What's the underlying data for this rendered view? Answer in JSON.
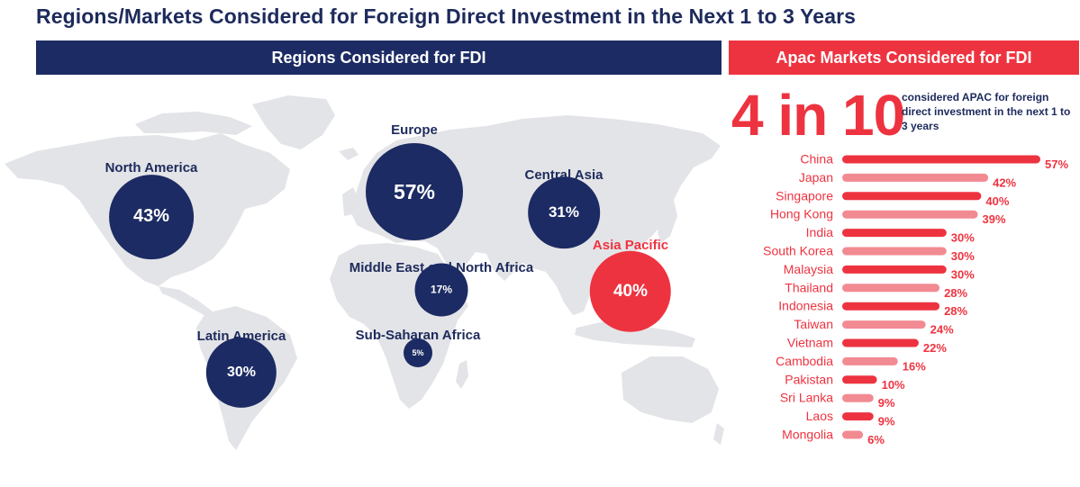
{
  "title": "Regions/Markets Considered for Foreign Direct Investment in the Next 1 to 3 Years",
  "left_header": "Regions Considered for FDI",
  "right_header": "Apac Markets Considered for FDI",
  "colors": {
    "navy": "#1c2b63",
    "red": "#ee3340",
    "pink": "#f28a92",
    "map_gray": "#e3e4e7"
  },
  "regions": [
    {
      "id": "north-america",
      "name": "North America",
      "value_label": "43%",
      "value": 43,
      "color": "navy"
    },
    {
      "id": "europe",
      "name": "Europe",
      "value_label": "57%",
      "value": 57,
      "color": "navy"
    },
    {
      "id": "central-asia",
      "name": "Central Asia",
      "value_label": "31%",
      "value": 31,
      "color": "navy"
    },
    {
      "id": "asia-pacific",
      "name": "Asia Pacific",
      "value_label": "40%",
      "value": 40,
      "color": "red"
    },
    {
      "id": "middle-east-north-africa",
      "name": "Middle East and North Africa",
      "value_label": "17%",
      "value": 17,
      "color": "navy"
    },
    {
      "id": "latin-america",
      "name": "Latin America",
      "value_label": "30%",
      "value": 30,
      "color": "navy"
    },
    {
      "id": "sub-saharan-africa",
      "name": "Sub-Saharan Africa",
      "value_label": "5%",
      "value": 5,
      "color": "navy"
    }
  ],
  "stat": {
    "big": "4 in 10",
    "text": "considered APAC for foreign direct investment in the next 1 to 3 years"
  },
  "chart_data": {
    "type": "bar",
    "orientation": "horizontal",
    "categories": [
      "China",
      "Japan",
      "Singapore",
      "Hong Kong",
      "India",
      "South Korea",
      "Malaysia",
      "Thailand",
      "Indonesia",
      "Taiwan",
      "Vietnam",
      "Cambodia",
      "Pakistan",
      "Sri Lanka",
      "Laos",
      "Mongolia"
    ],
    "values": [
      57,
      42,
      40,
      39,
      30,
      30,
      30,
      28,
      28,
      24,
      22,
      16,
      10,
      9,
      9,
      6
    ],
    "value_labels": [
      "57%",
      "42%",
      "40%",
      "39%",
      "30%",
      "30%",
      "30%",
      "28%",
      "28%",
      "24%",
      "22%",
      "16%",
      "10%",
      "9%",
      "9%",
      "6%"
    ],
    "bar_colors": [
      "red",
      "pink",
      "red",
      "pink",
      "red",
      "pink",
      "red",
      "pink",
      "red",
      "pink",
      "red",
      "pink",
      "red",
      "pink",
      "red",
      "pink"
    ],
    "title": "Apac Markets Considered for FDI",
    "xlabel": "",
    "ylabel": "",
    "xlim": [
      0,
      57
    ],
    "grid": false
  }
}
